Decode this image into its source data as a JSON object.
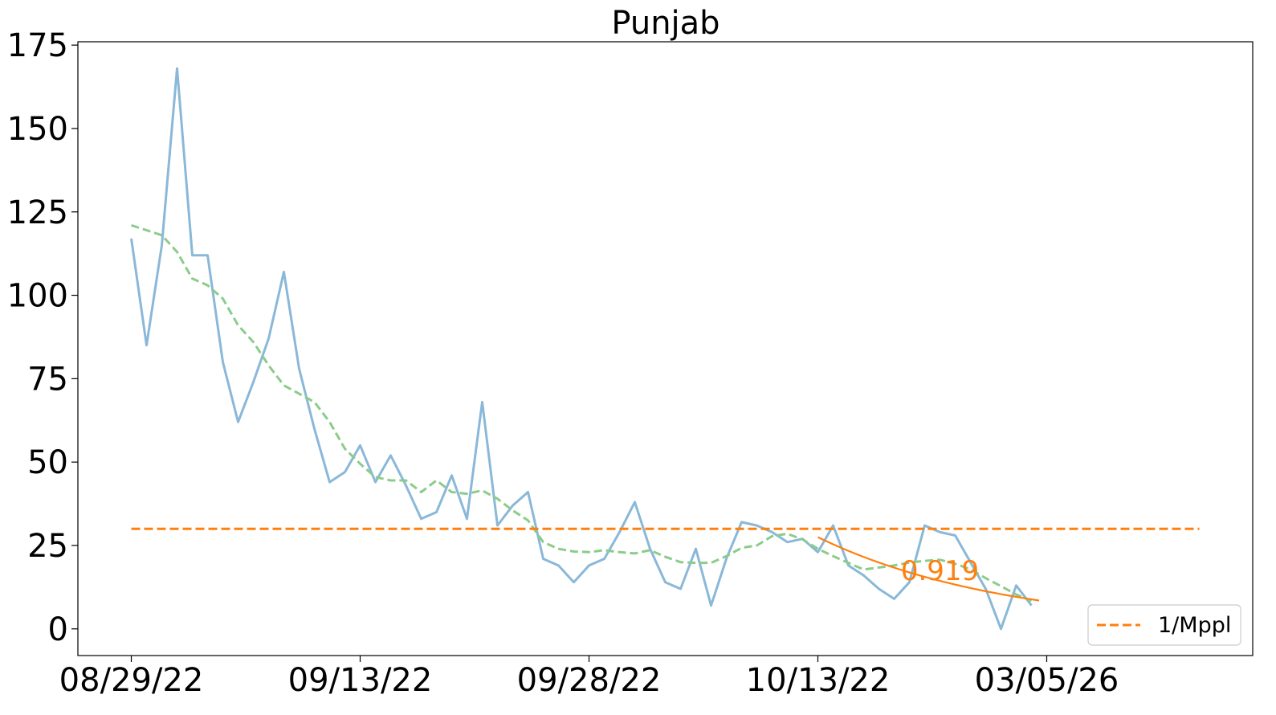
{
  "chart_data": {
    "type": "line",
    "title": "Punjab",
    "xlabel": "",
    "ylabel": "",
    "x_ticks": [
      "08/29/22",
      "09/13/22",
      "09/28/22",
      "10/13/22",
      "03/05/26"
    ],
    "x_tick_index": [
      0,
      15,
      30,
      45,
      60
    ],
    "xlim": [
      -3.5,
      73.5
    ],
    "ylim": [
      -8,
      176
    ],
    "y_ticks": [
      0,
      25,
      50,
      75,
      100,
      125,
      150,
      175
    ],
    "grid": false,
    "legend": {
      "placement": "lower-right",
      "entries": [
        "1/Mppl"
      ]
    },
    "series": [
      {
        "role": "daily",
        "color": "#8ab8d8",
        "style": "solid",
        "values": [
          117,
          85,
          115,
          168,
          112,
          112,
          80,
          62,
          74,
          87,
          107,
          78,
          60,
          44,
          47,
          55,
          44,
          52,
          43,
          33,
          35,
          46,
          33,
          68,
          31,
          37,
          41,
          21,
          19,
          14,
          19,
          21,
          29,
          38,
          24,
          14,
          12,
          24,
          7,
          21,
          32,
          31,
          29,
          26,
          27,
          23,
          31,
          19,
          16,
          12,
          9,
          14,
          31,
          29,
          28,
          20,
          12,
          0,
          13,
          7
        ]
      },
      {
        "role": "rolling-average",
        "color": "#8ccc8a",
        "style": "dashed",
        "values": [
          121,
          119.5,
          118,
          113,
          105,
          103,
          99,
          91,
          86,
          79,
          73,
          70.5,
          68,
          62,
          54,
          49.5,
          45.5,
          44.5,
          44.5,
          41,
          44.5,
          41,
          40.5,
          41.5,
          39,
          35.5,
          32.5,
          26,
          24,
          23.2,
          23,
          23.6,
          23,
          22.6,
          23.6,
          21.6,
          20,
          19.8,
          19.8,
          21.8,
          24.3,
          25,
          27.8,
          28.5,
          26.8,
          24,
          21.8,
          19.8,
          17.8,
          18.4,
          19,
          19.9,
          20.4,
          20.7,
          19.5,
          17.9,
          15.2,
          12.8,
          10.3,
          8.4
        ]
      },
      {
        "name": "1/Mppl",
        "role": "reference-line",
        "color": "#ff7f0e",
        "style": "dashed",
        "x_range": [
          0,
          70
        ],
        "value": 30
      },
      {
        "role": "fit",
        "color": "#ff7f0e",
        "style": "solid",
        "x_range": [
          45,
          59.5
        ],
        "y_range": [
          27.5,
          8.5
        ]
      }
    ],
    "annotations": [
      {
        "text": "0.919",
        "x": 53,
        "y": 14.6,
        "color": "#ff7f0e"
      }
    ]
  }
}
